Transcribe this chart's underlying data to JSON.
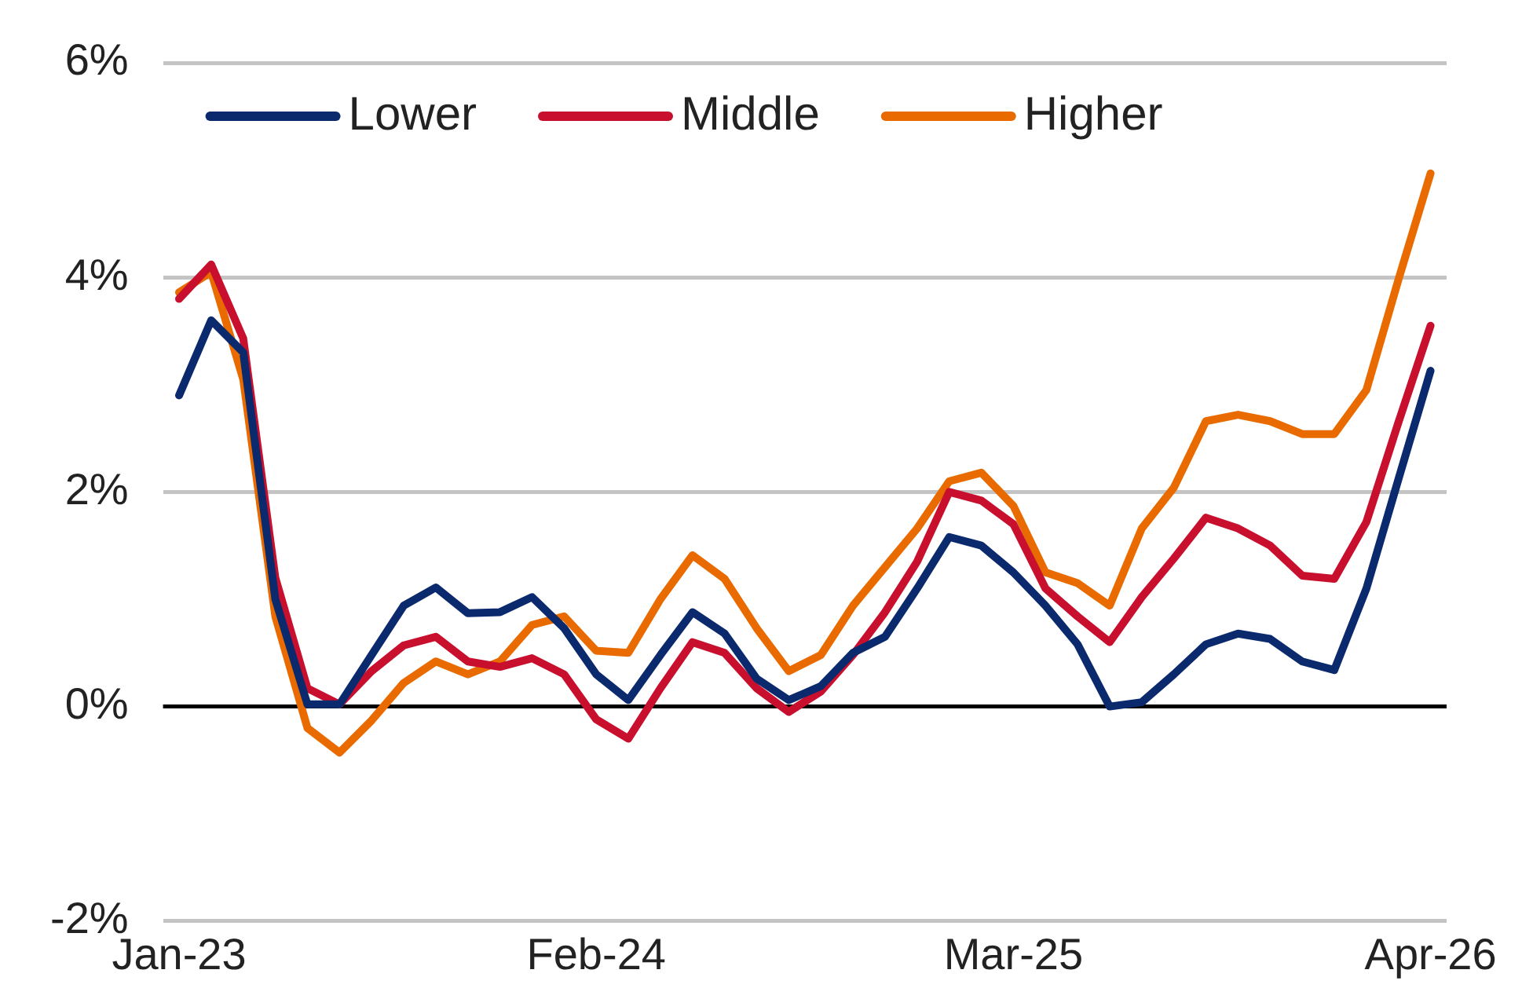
{
  "chart_data": {
    "type": "line",
    "categories": [
      "Jan-23",
      null,
      null,
      null,
      null,
      null,
      null,
      null,
      null,
      null,
      null,
      null,
      null,
      "Feb-24",
      null,
      null,
      null,
      null,
      null,
      null,
      null,
      null,
      null,
      null,
      null,
      null,
      "Mar-25",
      null,
      null,
      null,
      null,
      null,
      null,
      null,
      null,
      null,
      null,
      null,
      null,
      "Apr-26"
    ],
    "series": [
      {
        "name": "Lower",
        "color": "#0b2a6e",
        "values": [
          2.9,
          3.6,
          3.3,
          1.0,
          0.02,
          0.02,
          0.48,
          0.94,
          1.11,
          0.87,
          0.88,
          1.02,
          0.73,
          0.3,
          0.06,
          0.48,
          0.88,
          0.68,
          0.26,
          0.06,
          0.19,
          0.5,
          0.65,
          1.1,
          1.58,
          1.5,
          1.25,
          0.94,
          0.58,
          0.0,
          0.04,
          0.3,
          0.58,
          0.68,
          0.63,
          0.42,
          0.34,
          1.1,
          2.12,
          3.13
        ]
      },
      {
        "name": "Middle",
        "color": "#c8102e",
        "values": [
          3.8,
          4.12,
          3.43,
          1.2,
          0.17,
          0.02,
          0.33,
          0.57,
          0.65,
          0.42,
          0.37,
          0.45,
          0.3,
          -0.12,
          -0.3,
          0.17,
          0.6,
          0.5,
          0.17,
          -0.05,
          0.14,
          0.48,
          0.88,
          1.35,
          2.0,
          1.92,
          1.7,
          1.1,
          0.84,
          0.6,
          1.02,
          1.38,
          1.76,
          1.66,
          1.5,
          1.22,
          1.19,
          1.72,
          2.65,
          3.55
        ]
      },
      {
        "name": "Higher",
        "color": "#e96b00",
        "values": [
          3.86,
          4.05,
          3.05,
          0.84,
          -0.2,
          -0.43,
          -0.13,
          0.22,
          0.42,
          0.3,
          0.42,
          0.76,
          0.84,
          0.52,
          0.5,
          1.0,
          1.41,
          1.19,
          0.73,
          0.33,
          0.48,
          0.94,
          1.3,
          1.66,
          2.1,
          2.18,
          1.87,
          1.25,
          1.15,
          0.94,
          1.66,
          2.04,
          2.66,
          2.72,
          2.66,
          2.54,
          2.54,
          2.95,
          3.98,
          4.97
        ]
      }
    ],
    "ylim": [
      -2,
      6
    ],
    "yticks": [
      {
        "value": -2,
        "label": "-2%"
      },
      {
        "value": 0,
        "label": "0%"
      },
      {
        "value": 2,
        "label": "2%"
      },
      {
        "value": 4,
        "label": "4%"
      },
      {
        "value": 6,
        "label": "6%"
      }
    ],
    "ref_lines": [
      {
        "axis": "y",
        "value": 0,
        "label": null,
        "color": "#000000"
      }
    ],
    "grid": "y",
    "legend": "top left",
    "marker": "none",
    "line_style": "solid"
  }
}
